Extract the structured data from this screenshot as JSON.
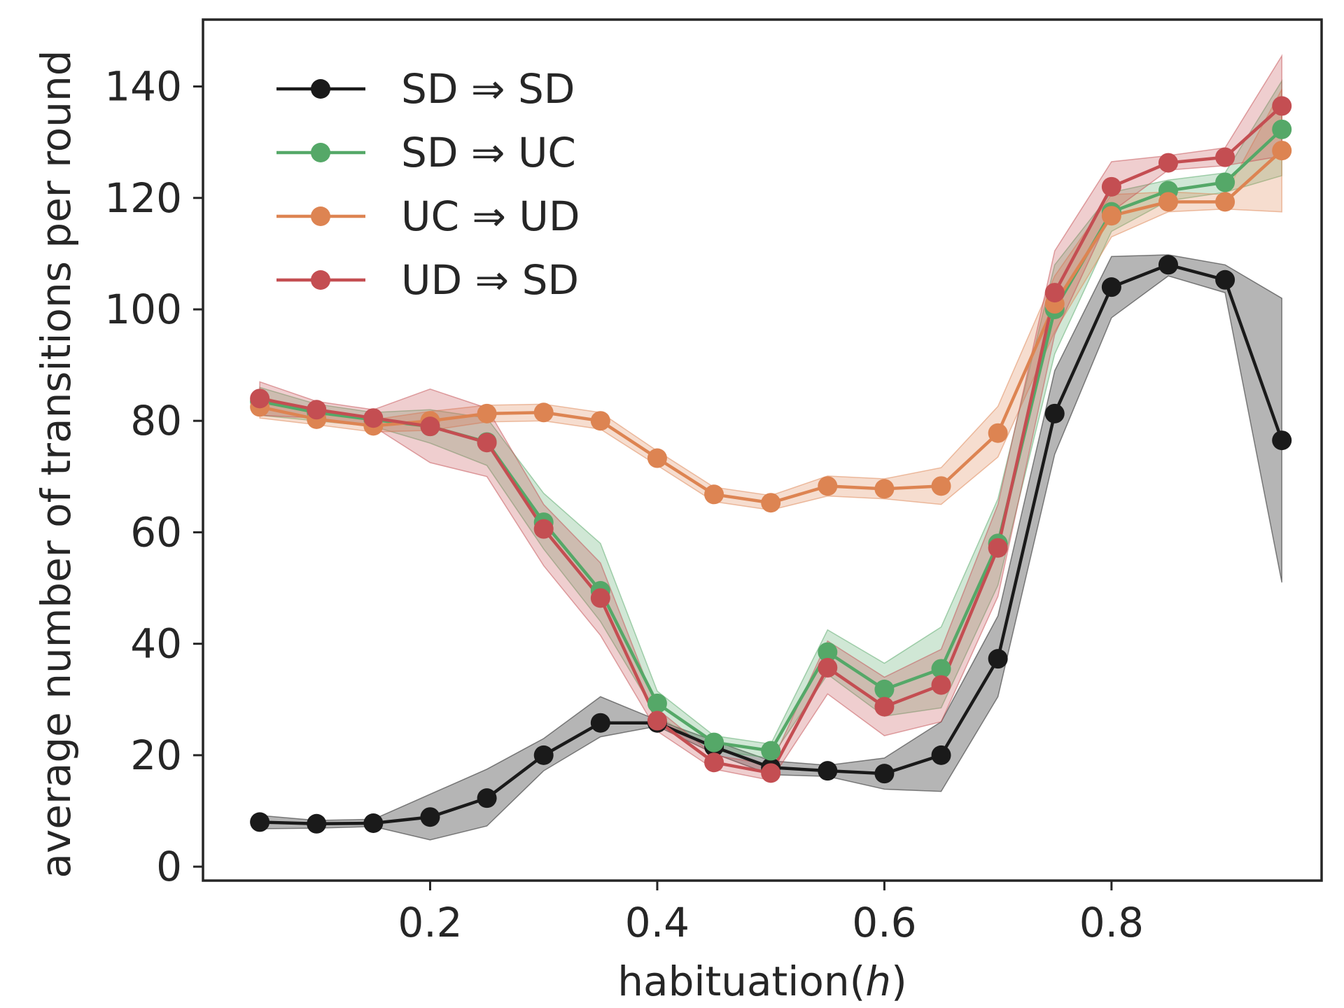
{
  "chart_data": {
    "type": "line",
    "title": "",
    "xlabel_text": "habituation(",
    "xlabel_var": "h",
    "xlabel_close": ")",
    "ylabel": "average number of transitions per round",
    "xlim": [
      0.0,
      0.985
    ],
    "ylim": [
      -2.5,
      152
    ],
    "x_ticks": [
      0.2,
      0.4,
      0.6,
      0.8
    ],
    "x_tick_labels": [
      "0.2",
      "0.4",
      "0.6",
      "0.8"
    ],
    "y_ticks": [
      0,
      20,
      40,
      60,
      80,
      100,
      120,
      140
    ],
    "y_tick_labels": [
      "0",
      "20",
      "40",
      "60",
      "80",
      "100",
      "120",
      "140"
    ],
    "grid": false,
    "legend_position": "top-left",
    "x": [
      0.05,
      0.1,
      0.15,
      0.2,
      0.25,
      0.3,
      0.35,
      0.4,
      0.45,
      0.5,
      0.55,
      0.6,
      0.65,
      0.7,
      0.75,
      0.8,
      0.85,
      0.9,
      0.95
    ],
    "series": [
      {
        "name": "SD ⇒ SD",
        "color": "#1a1a1a",
        "values": [
          8,
          7.7,
          7.8,
          8.9,
          12.3,
          20,
          25.8,
          25.8,
          21.5,
          17.8,
          17.2,
          16.7,
          20,
          37.3,
          81.3,
          104,
          108,
          105.3,
          76.5
        ],
        "lower": [
          6.8,
          6.9,
          7.2,
          4.8,
          7.3,
          17.2,
          23.3,
          25.2,
          20.3,
          16.5,
          16.2,
          13.9,
          13.5,
          30.5,
          74,
          98.5,
          106,
          103,
          51
        ],
        "upper": [
          9.2,
          8.3,
          8.5,
          13,
          17.5,
          23,
          30.5,
          26.3,
          22.6,
          19,
          18.2,
          19.5,
          26,
          45,
          89,
          109.5,
          109.8,
          108,
          102
        ]
      },
      {
        "name": "SD ⇒ UC",
        "color": "#55a868",
        "values": [
          83.5,
          81.5,
          80.2,
          79,
          76.2,
          61.8,
          49.5,
          29.3,
          22.3,
          20.8,
          38.5,
          31.8,
          35.5,
          58,
          100,
          117.5,
          121.3,
          122.8,
          132.3
        ],
        "lower": [
          81,
          80,
          79,
          76,
          72,
          57,
          44,
          27,
          20.8,
          19.5,
          34.5,
          27,
          28.5,
          50.5,
          92,
          114,
          119.5,
          121,
          124
        ],
        "upper": [
          86,
          83,
          81.5,
          82,
          80.5,
          67,
          58,
          31.5,
          23.5,
          22,
          42.5,
          36.5,
          43,
          66,
          108,
          121,
          123.2,
          124.5,
          141
        ]
      },
      {
        "name": "UC ⇒ UD",
        "color": "#dd8452",
        "values": [
          82.5,
          80.3,
          79.1,
          80,
          81.3,
          81.5,
          80,
          73.3,
          66.8,
          65.3,
          68.3,
          67.8,
          68.3,
          77.8,
          101,
          116.8,
          119.3,
          119.3,
          128.5
        ],
        "lower": [
          80.5,
          79.3,
          78,
          78.3,
          79.8,
          80,
          78.5,
          72,
          65.5,
          64,
          66.5,
          66,
          65,
          73.5,
          96,
          113,
          117.5,
          118,
          117.5
        ],
        "upper": [
          84.5,
          81.3,
          80.2,
          81.7,
          82.8,
          83,
          81.5,
          74.6,
          68.1,
          66.6,
          70.1,
          69.6,
          71.6,
          82.6,
          106,
          120.6,
          121.1,
          120.6,
          139.5
        ]
      },
      {
        "name": "UD ⇒ SD",
        "color": "#c44e52",
        "values": [
          84,
          82,
          80.5,
          79,
          76.1,
          60.6,
          48.2,
          26.2,
          18.7,
          16.8,
          35.7,
          28.7,
          32.6,
          57.2,
          103,
          122,
          126.3,
          127.3,
          136.5
        ],
        "lower": [
          81,
          80.5,
          79,
          72.5,
          70,
          54,
          41.5,
          24.3,
          17.5,
          15.5,
          31,
          23.5,
          26,
          48.5,
          95.5,
          117.5,
          125,
          125.8,
          127.5
        ],
        "upper": [
          87,
          83.5,
          82,
          85.7,
          82.3,
          65,
          54.5,
          28.3,
          20,
          18.3,
          40.5,
          34,
          39,
          65,
          110.5,
          126.5,
          127.6,
          129,
          145.5
        ]
      }
    ]
  }
}
